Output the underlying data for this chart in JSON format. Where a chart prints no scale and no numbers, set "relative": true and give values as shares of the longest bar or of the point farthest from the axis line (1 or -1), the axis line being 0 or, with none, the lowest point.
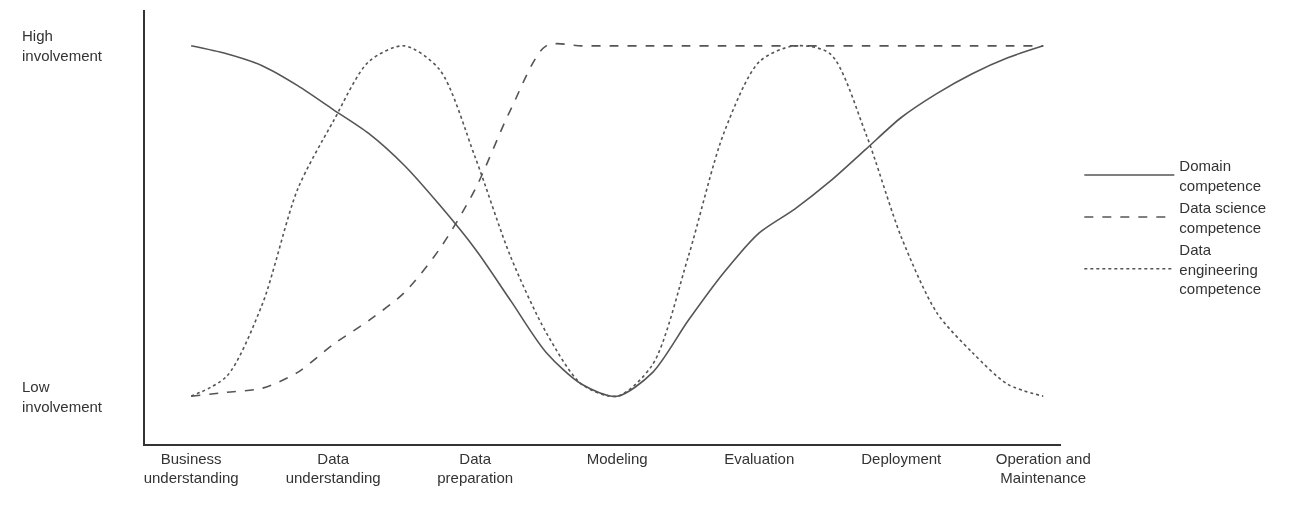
{
  "chart_data": {
    "type": "line",
    "relative": true,
    "categories": [
      "Business understanding",
      null,
      null,
      null,
      "Data understanding",
      null,
      null,
      null,
      "Data preparation",
      null,
      null,
      null,
      "Modeling",
      null,
      null,
      null,
      "Evaluation",
      null,
      null,
      null,
      "Deployment",
      null,
      null,
      null,
      "Operation and Maintenance"
    ],
    "annotations": [
      "High involvement",
      "Low involvement"
    ],
    "grid": false,
    "legend": "right",
    "marker": "none",
    "series": [
      {
        "name": "Domain competence",
        "color": "#555555",
        "line_style": "solid",
        "values": [
          1,
          0.98,
          0.95,
          0.9,
          0.84,
          0.78,
          0.7,
          0.6,
          0.49,
          0.36,
          0.23,
          0.15,
          0.12,
          0.18,
          0.31,
          0.43,
          0.53,
          0.59,
          0.66,
          0.74,
          0.82,
          0.88,
          0.93,
          0.97,
          1
        ]
      },
      {
        "name": "Data science competence",
        "color": "#555555",
        "line_style": "dashed",
        "values": [
          0.12,
          0.13,
          0.14,
          0.18,
          0.25,
          0.31,
          0.38,
          0.49,
          0.64,
          0.84,
          1,
          1,
          1,
          1,
          1,
          1,
          1,
          1,
          1,
          1,
          1,
          1,
          1,
          1,
          1
        ]
      },
      {
        "name": "Data engineering competence",
        "color": "#555555",
        "line_style": "dotted",
        "values": [
          0.12,
          0.17,
          0.35,
          0.64,
          0.81,
          0.96,
          1,
          0.94,
          0.72,
          0.47,
          0.28,
          0.15,
          0.12,
          0.2,
          0.47,
          0.78,
          0.96,
          1,
          0.98,
          0.78,
          0.52,
          0.33,
          0.23,
          0.15,
          0.12
        ]
      }
    ]
  }
}
